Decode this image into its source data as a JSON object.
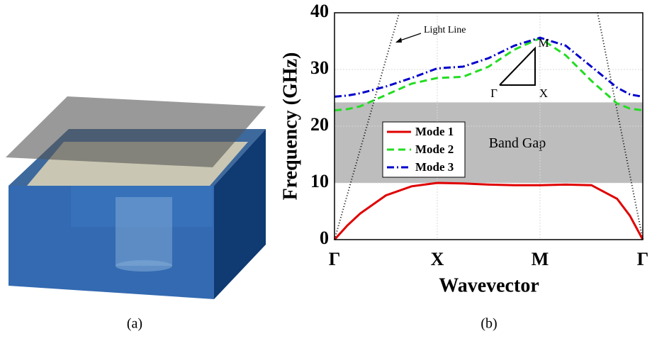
{
  "illustration": {
    "caption": "(a)"
  },
  "chart_data": {
    "type": "line",
    "caption": "(b)",
    "xlabel": "Wavevector",
    "ylabel": "Frequency (GHz)",
    "x": [
      0,
      0.125,
      0.25,
      0.5,
      0.75,
      1,
      1.25,
      1.5,
      1.75,
      2,
      2.25,
      2.5,
      2.75,
      2.875,
      3
    ],
    "series": [
      {
        "name": "Mode 1",
        "color": "#e00000",
        "style": "solid",
        "values": [
          0,
          2.5,
          4.6,
          7.8,
          9.4,
          10.0,
          9.9,
          9.7,
          9.6,
          9.6,
          9.7,
          9.6,
          7.2,
          4.2,
          0
        ]
      },
      {
        "name": "Mode 2",
        "color": "#22dd22",
        "style": "dashed",
        "values": [
          22.8,
          23.0,
          23.5,
          25.5,
          27.5,
          28.5,
          28.7,
          30.5,
          33.5,
          35.5,
          32.5,
          28,
          24,
          23.1,
          22.8
        ]
      },
      {
        "name": "Mode 3",
        "color": "#0000cc",
        "style": "dashdot",
        "values": [
          25.2,
          25.4,
          25.8,
          27,
          28.5,
          30.2,
          30.5,
          32,
          34.2,
          35.6,
          34.2,
          30.5,
          26.8,
          25.6,
          25.2
        ]
      }
    ],
    "xlim": [
      0,
      3
    ],
    "xticks": [
      {
        "value": 0,
        "label": "Γ"
      },
      {
        "value": 1,
        "label": "X"
      },
      {
        "value": 2,
        "label": "M"
      },
      {
        "value": 3,
        "label": "Γ"
      }
    ],
    "ylim": [
      0,
      40
    ],
    "yticks": [
      0,
      10,
      20,
      30,
      40
    ],
    "grid": true,
    "legend_loc": "center left",
    "band_gap": {
      "label": "Band Gap",
      "range": [
        10,
        24.2
      ],
      "color": "#bdbdbd"
    },
    "light_lines": {
      "label": "Light Line",
      "color": "#000000",
      "segments": [
        {
          "x": [
            0,
            0.63
          ],
          "y": [
            0,
            40
          ]
        },
        {
          "x": [
            2.56,
            3
          ],
          "y": [
            40,
            0
          ]
        }
      ]
    },
    "inset_labels": [
      "Γ",
      "X",
      "M"
    ]
  }
}
